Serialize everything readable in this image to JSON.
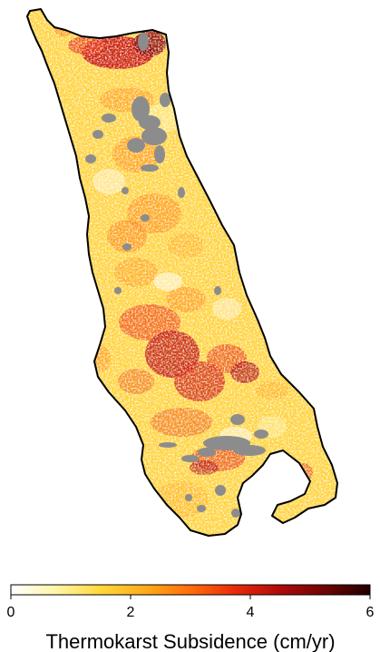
{
  "colorbar": {
    "title": "Thermokarst Subsidence (cm/yr)",
    "min": 0,
    "max": 6,
    "ticks": [
      {
        "value": 0,
        "label": "0"
      },
      {
        "value": 2,
        "label": "2"
      },
      {
        "value": 4,
        "label": "4"
      },
      {
        "value": 6,
        "label": "6"
      }
    ],
    "colormap": [
      "#ffffff",
      "#fff5a8",
      "#ffd83a",
      "#ffab1a",
      "#ff6d0a",
      "#e82a0a",
      "#b00a0a",
      "#6e0404",
      "#200000"
    ]
  },
  "map": {
    "nodata_color": "#8c8c8c",
    "outline_color": "#000000"
  }
}
